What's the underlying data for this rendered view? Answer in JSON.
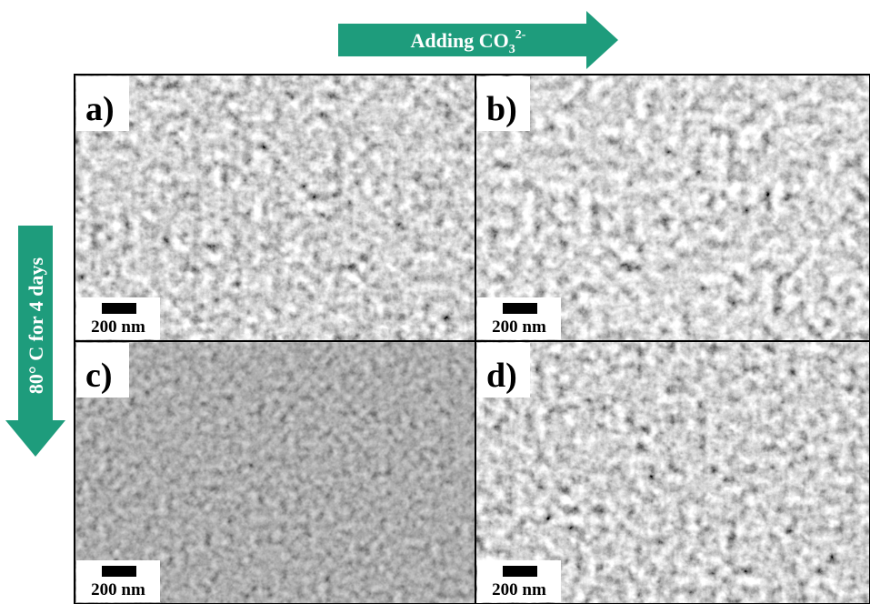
{
  "top_arrow": {
    "text": "Adding CO",
    "subscript": "3",
    "superscript": "2-"
  },
  "side_arrow": {
    "text": "80° C for 4 days"
  },
  "panels": [
    {
      "label": "a)",
      "scale_bar": "200 nm"
    },
    {
      "label": "b)",
      "scale_bar": "200 nm"
    },
    {
      "label": "c)",
      "scale_bar": "200 nm"
    },
    {
      "label": "d)",
      "scale_bar": "200 nm"
    }
  ]
}
